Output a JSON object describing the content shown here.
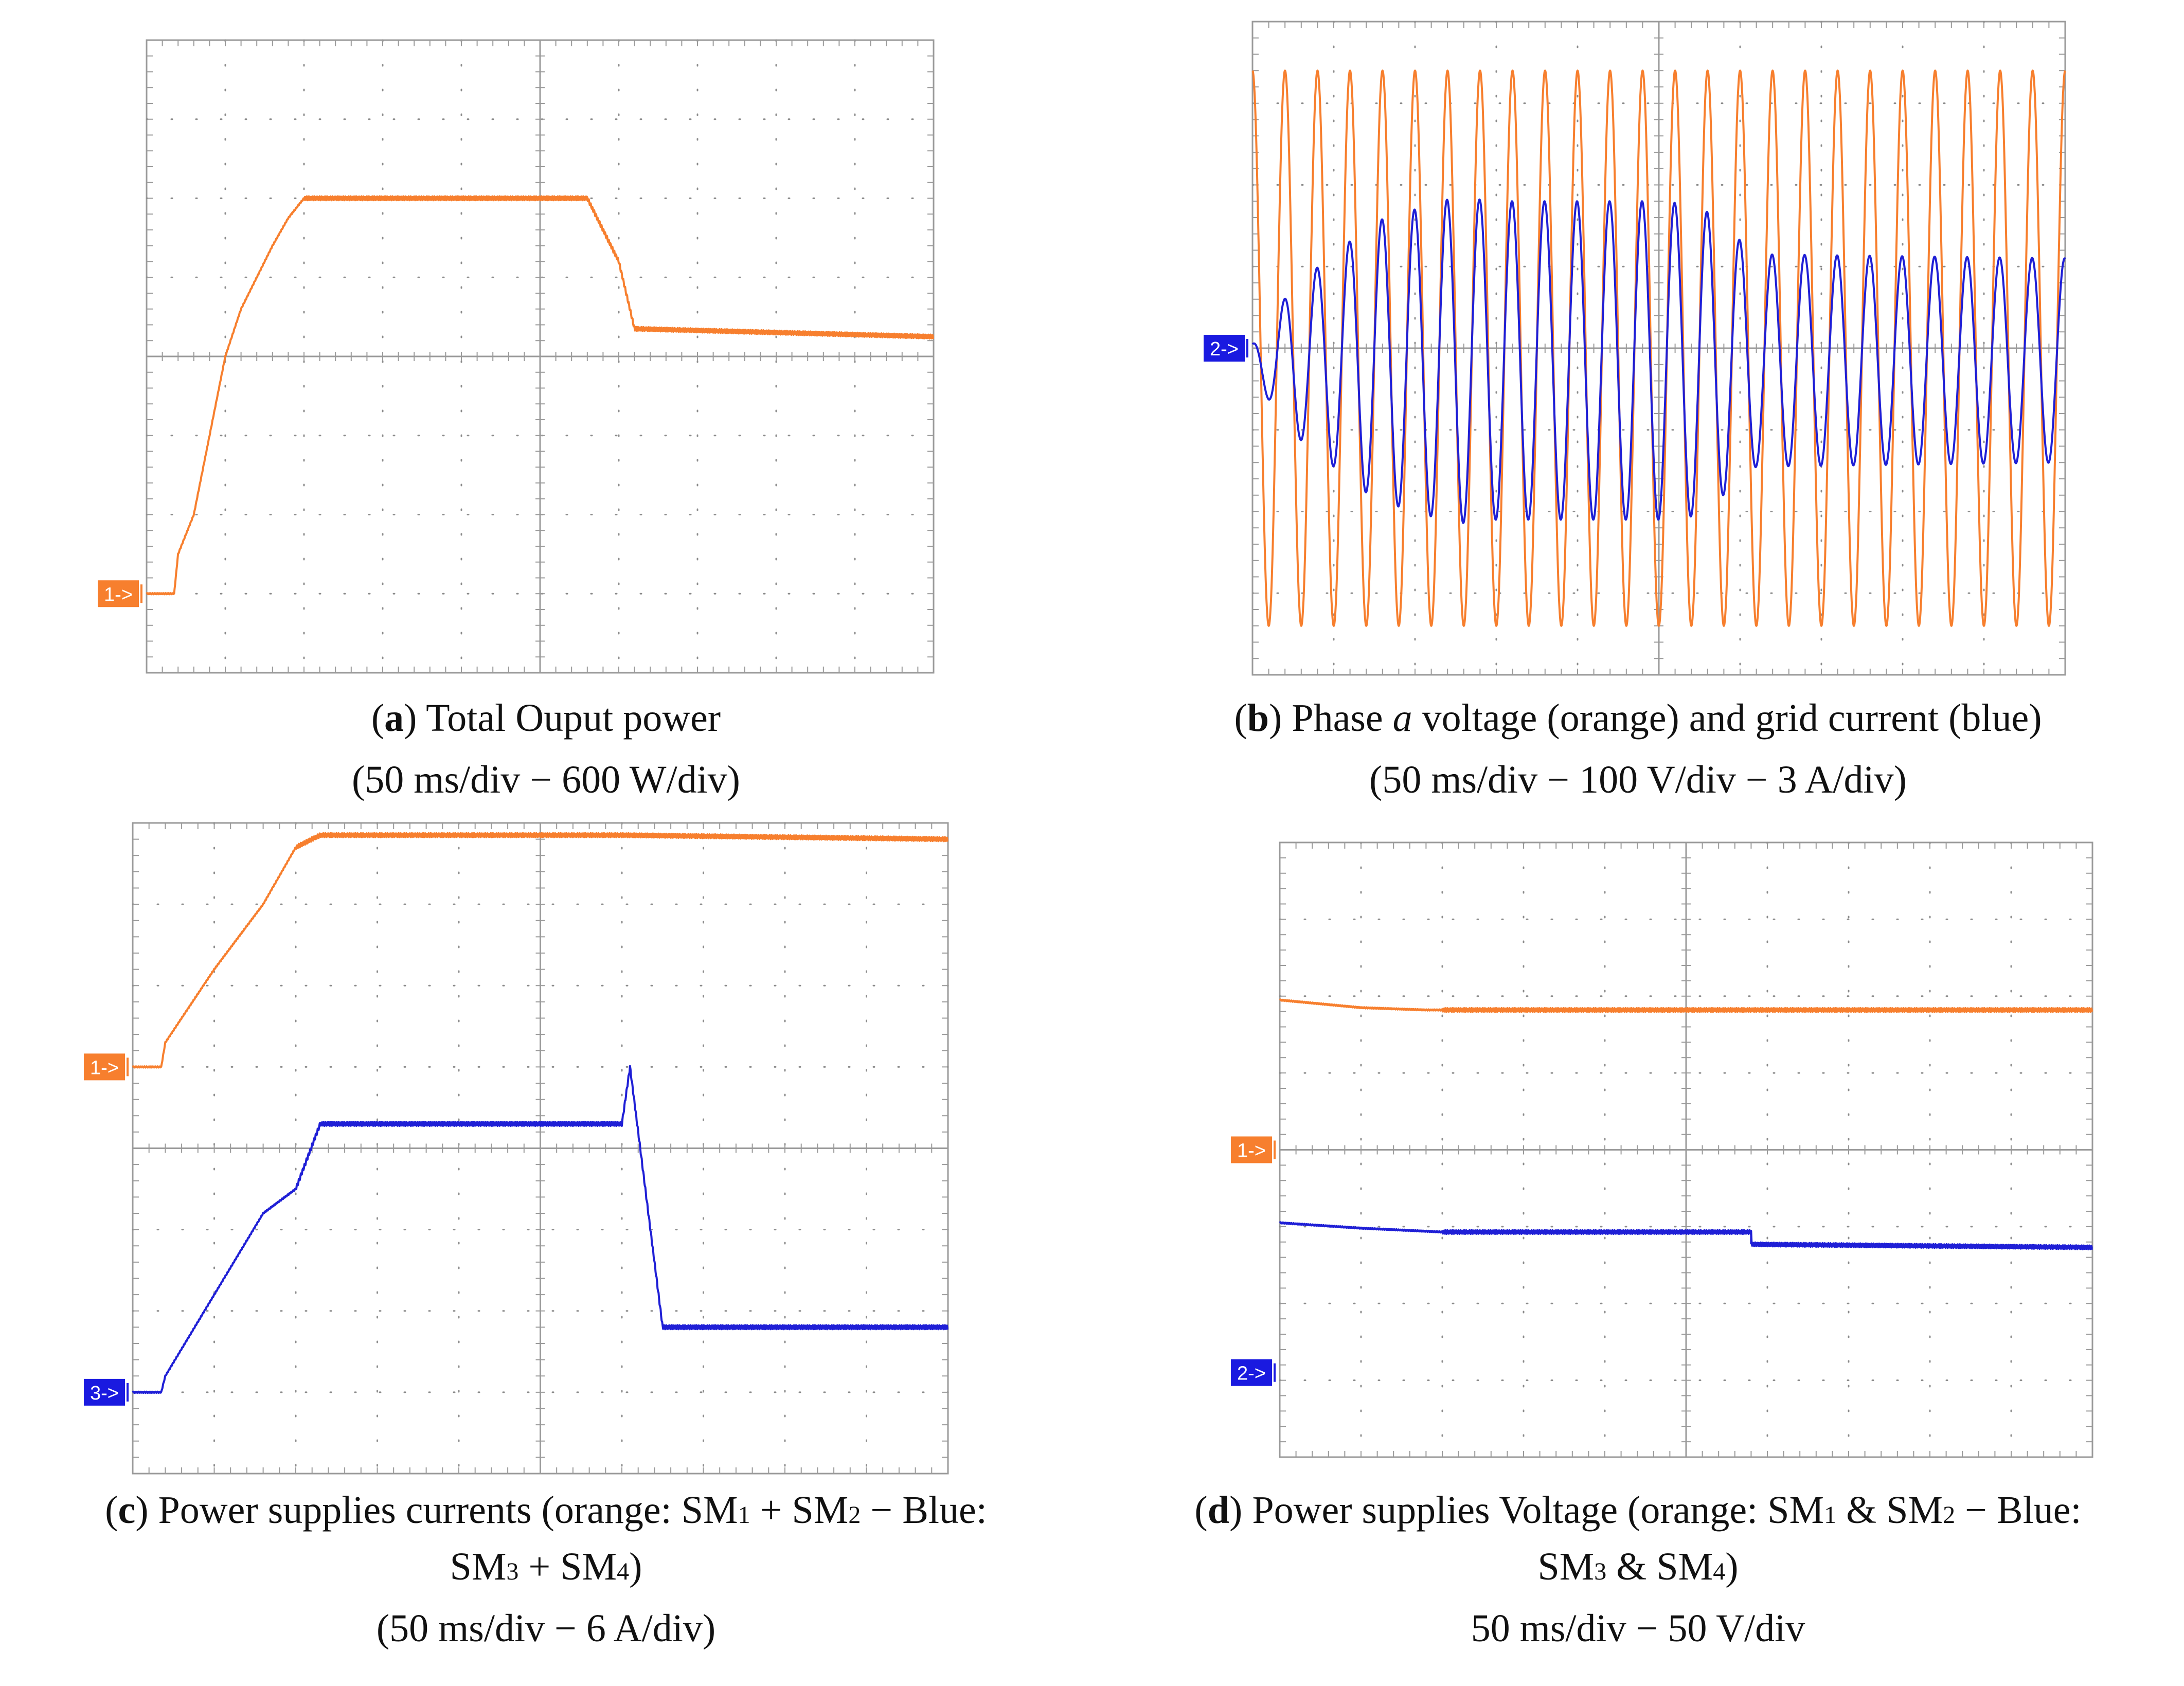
{
  "colors": {
    "orange": "#f77f2e",
    "blue": "#1f1fd6",
    "grid": "#8c8c8c",
    "frame": "#9a9a9a",
    "marker_orange": "#f77f2e",
    "marker_blue": "#1a1ae0"
  },
  "chart_data": [
    {
      "id": "a",
      "type": "line",
      "title": "Total Ouput power",
      "time_scale": "50 ms/div",
      "vertical_scale": "600 W/div",
      "x_unit": "div",
      "y_unit": "div",
      "xlim": [
        0,
        10
      ],
      "ylim": [
        -4,
        4
      ],
      "markers": [
        {
          "label": "1->",
          "level_div": -3.0,
          "color": "orange"
        }
      ],
      "series": [
        {
          "name": "Total output power",
          "color": "orange",
          "points": [
            [
              0.0,
              -3.0
            ],
            [
              0.35,
              -3.0
            ],
            [
              0.4,
              -2.5
            ],
            [
              0.6,
              -2.0
            ],
            [
              0.8,
              -1.0
            ],
            [
              1.0,
              0.0
            ],
            [
              1.2,
              0.6
            ],
            [
              1.4,
              1.0
            ],
            [
              1.6,
              1.4
            ],
            [
              1.8,
              1.75
            ],
            [
              2.0,
              2.0
            ],
            [
              5.6,
              2.0
            ],
            [
              6.0,
              1.2
            ],
            [
              6.2,
              0.35
            ],
            [
              10.0,
              0.25
            ]
          ]
        }
      ]
    },
    {
      "id": "b",
      "type": "line",
      "title": "Phase a voltage (orange) and grid current (blue)",
      "time_scale": "50 ms/div",
      "vertical_scale": "100 V/div − 3 A/div",
      "x_unit": "div",
      "y_unit": "div",
      "xlim": [
        0,
        10
      ],
      "ylim": [
        -4,
        4
      ],
      "markers": [
        {
          "label": "2->",
          "level_div": 0.0,
          "color": "blue"
        }
      ],
      "series": [
        {
          "name": "Phase a voltage",
          "color": "orange",
          "kind": "sine",
          "amplitude_div": 3.4,
          "cycles": 25,
          "offset_div": 0
        },
        {
          "name": "Grid current",
          "color": "blue",
          "kind": "sine",
          "cycles": 25,
          "offset_div": -0.15,
          "envelope": [
            [
              0,
              0.2
            ],
            [
              0.5,
              0.9
            ],
            [
              1.5,
              1.7
            ],
            [
              2.5,
              2.0
            ],
            [
              3.0,
              1.95
            ],
            [
              5.0,
              1.95
            ],
            [
              5.5,
              1.9
            ],
            [
              6.2,
              1.3
            ],
            [
              10.0,
              1.25
            ]
          ]
        }
      ]
    },
    {
      "id": "c",
      "type": "line",
      "title": "Power supplies currents (orange: SM1 + SM2 − Blue: SM3 + SM4)",
      "time_scale": "50 ms/div",
      "vertical_scale": "6 A/div",
      "x_unit": "div",
      "y_unit": "div",
      "xlim": [
        0,
        10
      ],
      "ylim": [
        -4,
        4
      ],
      "markers": [
        {
          "label": "1->",
          "level_div": 1.0,
          "color": "orange"
        },
        {
          "label": "3->",
          "level_div": -3.0,
          "color": "blue"
        }
      ],
      "series": [
        {
          "name": "SM1 + SM2",
          "color": "orange",
          "points": [
            [
              0.0,
              1.0
            ],
            [
              0.35,
              1.0
            ],
            [
              0.4,
              1.3
            ],
            [
              1.0,
              2.2
            ],
            [
              1.6,
              3.0
            ],
            [
              2.0,
              3.7
            ],
            [
              2.3,
              3.85
            ],
            [
              6.0,
              3.85
            ],
            [
              10.0,
              3.8
            ]
          ]
        },
        {
          "name": "SM3 + SM4",
          "color": "blue",
          "points": [
            [
              0.0,
              -3.0
            ],
            [
              0.35,
              -3.0
            ],
            [
              0.4,
              -2.8
            ],
            [
              1.0,
              -1.8
            ],
            [
              1.6,
              -0.8
            ],
            [
              2.0,
              -0.5
            ],
            [
              2.3,
              0.3
            ],
            [
              6.0,
              0.3
            ],
            [
              6.1,
              1.0
            ],
            [
              6.3,
              -0.6
            ],
            [
              6.5,
              -2.2
            ],
            [
              10.0,
              -2.2
            ]
          ]
        }
      ]
    },
    {
      "id": "d",
      "type": "line",
      "title": "Power supplies Voltage (orange: SM1 & SM2 − Blue: SM3 & SM4)",
      "time_scale": "50 ms/div",
      "vertical_scale": "50 V/div",
      "x_unit": "div",
      "y_unit": "div",
      "xlim": [
        0,
        10
      ],
      "ylim": [
        -4,
        4
      ],
      "markers": [
        {
          "label": "1->",
          "level_div": 0.0,
          "color": "orange"
        },
        {
          "label": "2->",
          "level_div": -2.9,
          "color": "blue"
        }
      ],
      "series": [
        {
          "name": "SM1 & SM2",
          "color": "orange",
          "points": [
            [
              0.0,
              1.95
            ],
            [
              0.5,
              1.9
            ],
            [
              1.0,
              1.85
            ],
            [
              1.8,
              1.82
            ],
            [
              10.0,
              1.82
            ]
          ]
        },
        {
          "name": "SM3 & SM4",
          "color": "blue",
          "points": [
            [
              0.0,
              -0.95
            ],
            [
              1.0,
              -1.02
            ],
            [
              2.0,
              -1.07
            ],
            [
              5.8,
              -1.07
            ],
            [
              5.8,
              -1.23
            ],
            [
              10.0,
              -1.27
            ]
          ]
        }
      ]
    }
  ],
  "captions": {
    "a": {
      "letter": "a",
      "text": " Total Ouput power",
      "scale": "(50 ms/div − 600 W/div)"
    },
    "b": {
      "letter": "b",
      "pre": " Phase ",
      "var": "a",
      "post": " voltage (orange) and grid current (blue)",
      "scale": "(50 ms/div − 100 V/div − 3 A/div)"
    },
    "c": {
      "letter": "c",
      "line1": " Power supplies currents (orange: SM",
      "line1_sub1": "1",
      "line1_mid": " + SM",
      "line1_sub2": "2",
      "line1_end": " − Blue:",
      "line2": "SM",
      "line2_sub1": "3",
      "line2_mid": " + SM",
      "line2_sub2": "4",
      "line2_end": ")",
      "scale": "(50 ms/div − 6 A/div)"
    },
    "d": {
      "letter": "d",
      "line1": " Power supplies Voltage (orange: SM",
      "line1_sub1": "1",
      "line1_mid": " & SM",
      "line1_sub2": "2",
      "line1_end": " − Blue:",
      "line2": "SM",
      "line2_sub1": "3",
      "line2_mid": " & SM",
      "line2_sub2": "4",
      "line2_end": ")",
      "scale": "50 ms/div − 50 V/div"
    }
  }
}
